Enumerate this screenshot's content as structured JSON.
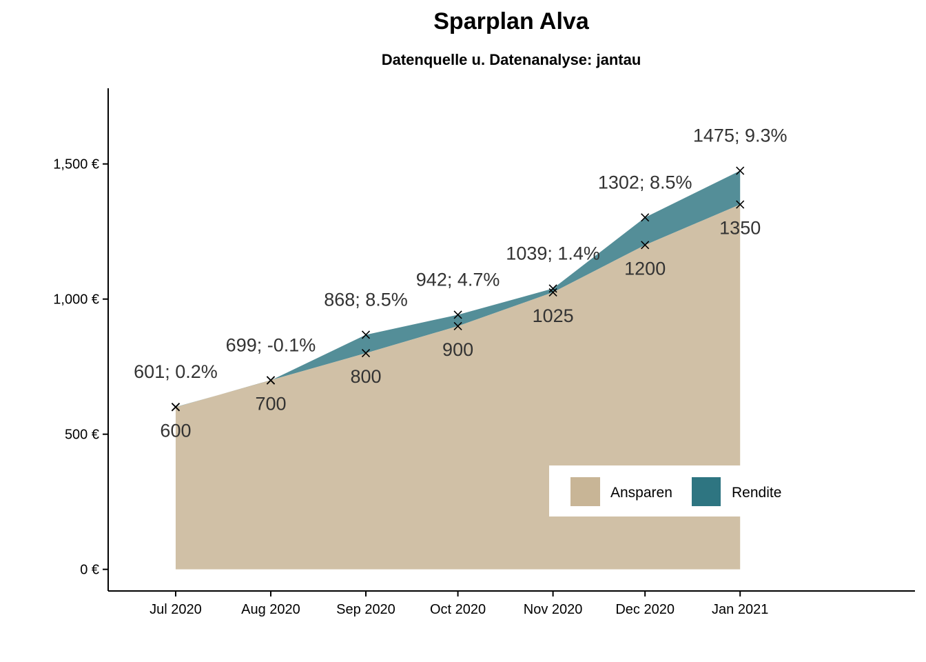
{
  "chart_data": {
    "type": "area",
    "title": "Sparplan Alva",
    "subtitle": "Datenquelle u. Datenanalyse: jantau",
    "xlabel": "",
    "ylabel": "",
    "x": [
      "2020-07-01",
      "2020-08-01",
      "2020-09-01",
      "2020-10-01",
      "2020-11-01",
      "2020-12-01",
      "2021-01-01"
    ],
    "x_ticks": [
      "Jul 2020",
      "Aug 2020",
      "Sep 2020",
      "Oct 2020",
      "Nov 2020",
      "Dec 2020",
      "Jan 2021"
    ],
    "xlim": [
      "2020-06-09",
      "2021-02-27"
    ],
    "ylim": [
      -80,
      1780
    ],
    "y_ticks": [
      0,
      500,
      1000,
      1500
    ],
    "y_tick_labels": [
      "0 €",
      "500 €",
      "1,000 €",
      "1,500 €"
    ],
    "stacked": true,
    "series": [
      {
        "name": "Ansparen",
        "color": "#c8b596",
        "fill_opacity": 0.85,
        "values": [
          600,
          700,
          800,
          900,
          1025,
          1200,
          1350
        ]
      },
      {
        "name": "Rendite",
        "color": "#2e7581",
        "fill_opacity": 0.82,
        "values": [
          1,
          -1,
          68,
          42,
          14,
          102,
          125
        ]
      }
    ],
    "totals": [
      601,
      699,
      868,
      942,
      1039,
      1302,
      1475
    ],
    "labels_top": [
      "601; 0.2%",
      "699; -0.1%",
      "868; 8.5%",
      "942; 4.7%",
      "1039; 1.4%",
      "1302; 8.5%",
      "1475; 9.3%"
    ],
    "labels_bottom": [
      "600",
      "700",
      "800",
      "900",
      "1025",
      "1200",
      "1350"
    ],
    "marker": "x",
    "grid": false,
    "legend": {
      "position": "bottom-right",
      "entries": [
        "Ansparen",
        "Rendite"
      ]
    }
  }
}
